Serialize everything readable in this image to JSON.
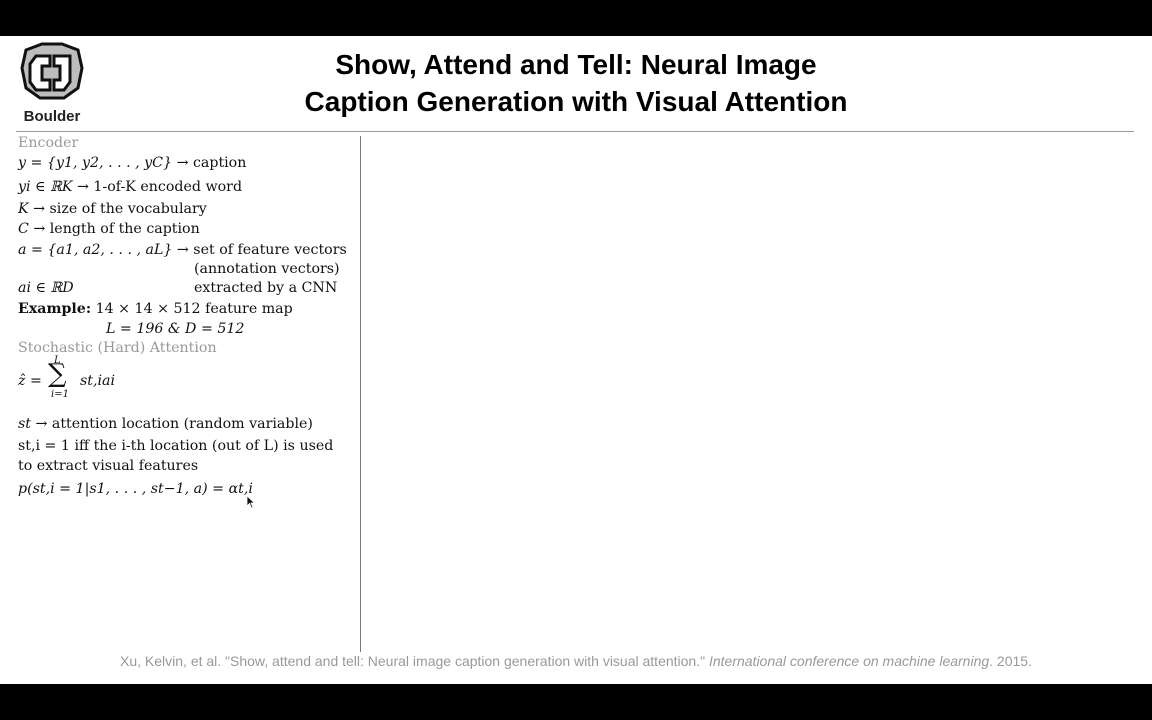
{
  "header": {
    "logo_text": "Boulder",
    "title_line1": "Show, Attend and Tell: Neural Image",
    "title_line2": "Caption Generation with Visual Attention"
  },
  "encoder": {
    "heading": "Encoder",
    "l1": {
      "math": "y = {y1, y2, . . . , yC}",
      "text": "→ caption"
    },
    "l2": {
      "math": "yi ∈ ℝK",
      "text": "→ 1-of-K encoded word"
    },
    "l3": {
      "math": "K",
      "text": "→ size of the vocabulary"
    },
    "l4": {
      "math": "C",
      "text": "→ length of the caption"
    },
    "l5": {
      "math": "a = {a1, a2, . . . , aL}",
      "text": "→ set of feature vectors"
    },
    "l6": {
      "text": "(annotation vectors)"
    },
    "l7": {
      "math": "ai ∈ ℝD",
      "text": "extracted by a CNN"
    },
    "example_label": "Example:",
    "example_line1": "14 × 14 × 512 feature map",
    "example_line2": "L = 196 & D = 512"
  },
  "hard_attention": {
    "heading": "Stochastic (Hard) Attention",
    "sum": {
      "lhs": "ẑ =",
      "upper": "L",
      "lower": "i=1",
      "term": "st,iai"
    },
    "l1": {
      "math": "st",
      "text": "→ attention location (random variable)"
    },
    "l2": {
      "text": "st,i = 1 iff the i-th location (out of L) is used"
    },
    "l3": {
      "text": "to extract visual features"
    },
    "l4": {
      "text": "p(st,i = 1|s1, . . . , st−1, a) = αt,i"
    }
  },
  "citation": {
    "authors": "Xu, Kelvin, et al. \"Show, attend and tell: Neural image caption generation with visual attention.\"",
    "venue": "International conference on machine learning",
    "year": ". 2015."
  },
  "colors": {
    "background": "#ffffff",
    "letterbox": "#000000",
    "heading_gray": "#999999",
    "citation_gray": "#999999"
  },
  "icons": {
    "logo": "cu-boulder-logo-icon",
    "cursor": "mouse-pointer-icon"
  }
}
